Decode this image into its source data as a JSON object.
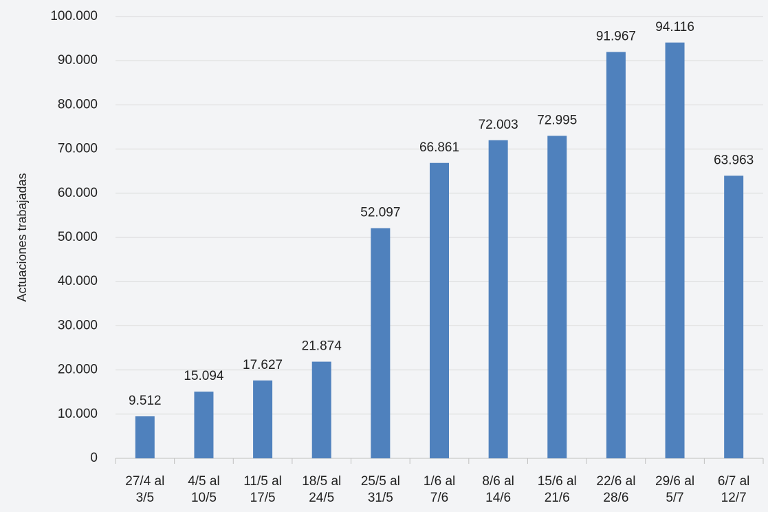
{
  "chart_data": {
    "type": "bar",
    "y_axis_label": "Actuaciones trabajadas",
    "categories": [
      "27/4 al\n3/5",
      "4/5 al\n10/5",
      "11/5 al\n17/5",
      "18/5 al\n24/5",
      "25/5 al\n31/5",
      "1/6 al\n7/6",
      "8/6 al\n14/6",
      "15/6 al\n21/6",
      "22/6 al\n28/6",
      "29/6 al\n5/7",
      "6/7 al\n12/7"
    ],
    "values": [
      9512,
      15094,
      17627,
      21874,
      52097,
      66861,
      72003,
      72995,
      91967,
      94116,
      63963
    ],
    "value_labels": [
      "9.512",
      "15.094",
      "17.627",
      "21.874",
      "52.097",
      "66.861",
      "72.003",
      "72.995",
      "91.967",
      "94.116",
      "63.963"
    ],
    "color": "#4f81bd",
    "ylim": [
      0,
      100000
    ],
    "yticks": [
      0,
      {
        "value": 10000,
        "label": "10.000"
      },
      {
        "value": 20000,
        "label": "20.000"
      },
      {
        "value": 30000,
        "label": "30.000"
      },
      {
        "value": 40000,
        "label": "40.000"
      },
      {
        "value": 50000,
        "label": "50.000"
      },
      {
        "value": 60000,
        "label": "60.000"
      },
      {
        "value": 70000,
        "label": "70.000"
      },
      {
        "value": 80000,
        "label": "80.000"
      },
      {
        "value": 90000,
        "label": "90.000"
      },
      {
        "value": 100000,
        "label": "100.000"
      }
    ],
    "grid": true
  }
}
